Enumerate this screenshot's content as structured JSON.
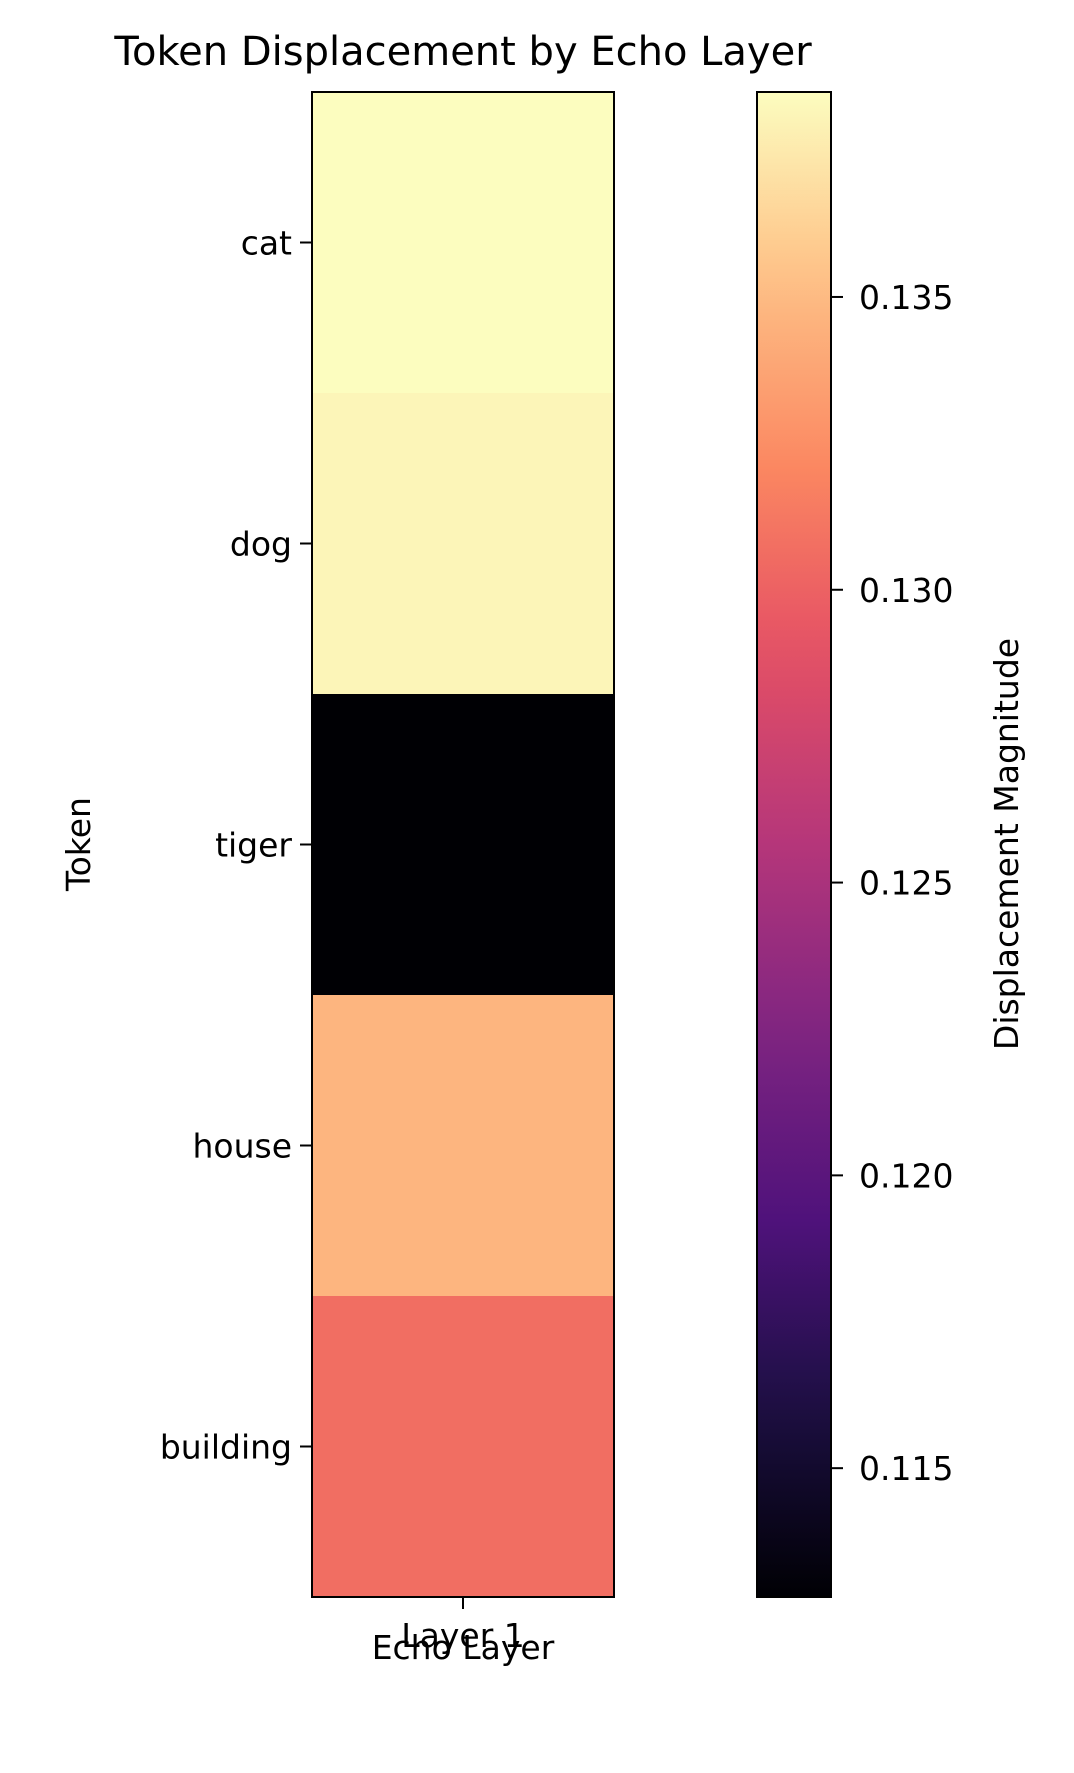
{
  "chart_data": {
    "type": "heatmap",
    "title": "Token Displacement by Echo Layer",
    "xlabel": "Echo Layer",
    "ylabel": "Token",
    "x_categories": [
      "Layer 1"
    ],
    "y_categories": [
      "cat",
      "dog",
      "tiger",
      "house",
      "building"
    ],
    "values": [
      [
        0.1385
      ],
      [
        0.1381
      ],
      [
        0.1128
      ],
      [
        0.1347
      ],
      [
        0.1307
      ]
    ],
    "colormap": "magma",
    "colorbar": {
      "label": "Displacement Magnitude",
      "range": [
        0.1128,
        0.1385
      ],
      "ticks": [
        0.115,
        0.12,
        0.125,
        0.13,
        0.135
      ],
      "tick_labels": [
        "0.115",
        "0.120",
        "0.125",
        "0.130",
        "0.135"
      ]
    }
  }
}
